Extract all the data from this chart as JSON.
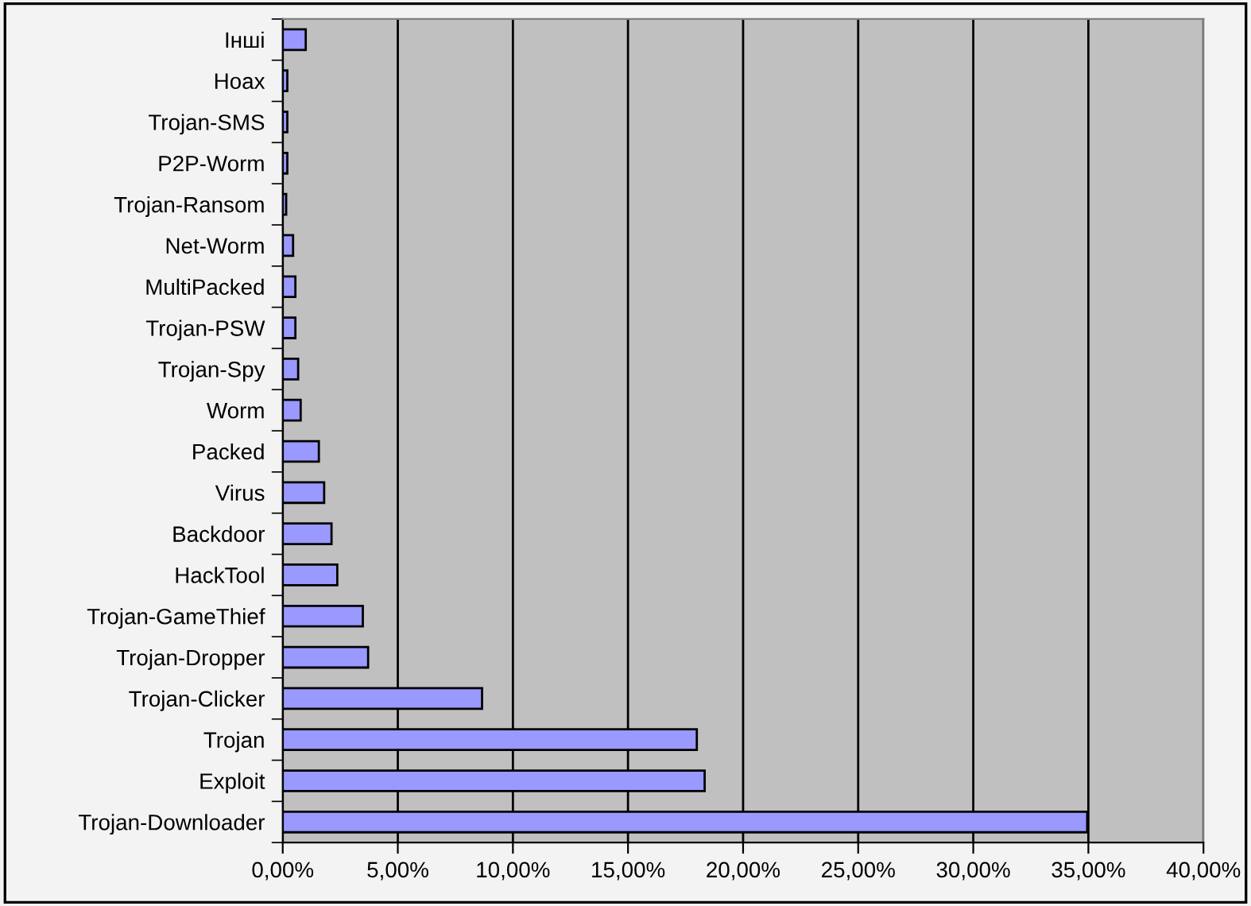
{
  "chart_data": {
    "type": "bar",
    "orientation": "horizontal",
    "categories": [
      "Інші",
      "Hoax",
      "Trojan-SMS",
      "P2P-Worm",
      "Trojan-Ransom",
      "Net-Worm",
      "MultiPacked",
      "Trojan-PSW",
      "Trojan-Spy",
      "Worm",
      "Packed",
      "Virus",
      "Backdoor",
      "HackTool",
      "Trojan-GameThief",
      "Trojan-Dropper",
      "Trojan-Clicker",
      "Trojan",
      "Exploit",
      "Trojan-Downloader"
    ],
    "values": [
      1.0,
      0.2,
      0.2,
      0.2,
      0.15,
      0.45,
      0.55,
      0.55,
      0.67,
      0.78,
      1.57,
      1.8,
      2.12,
      2.37,
      3.48,
      3.71,
      8.66,
      17.99,
      18.33,
      34.95
    ],
    "color": "#9999ff",
    "xlim": [
      0,
      40
    ],
    "xticks": [
      {
        "value": 0,
        "label": "0,00%"
      },
      {
        "value": 5,
        "label": "5,00%"
      },
      {
        "value": 10,
        "label": "10,00%"
      },
      {
        "value": 15,
        "label": "15,00%"
      },
      {
        "value": 20,
        "label": "20,00%"
      },
      {
        "value": 25,
        "label": "25,00%"
      },
      {
        "value": 30,
        "label": "30,00%"
      },
      {
        "value": 35,
        "label": "35,00%"
      },
      {
        "value": 40,
        "label": "40,00%"
      }
    ],
    "grid": "x",
    "legend": false
  }
}
